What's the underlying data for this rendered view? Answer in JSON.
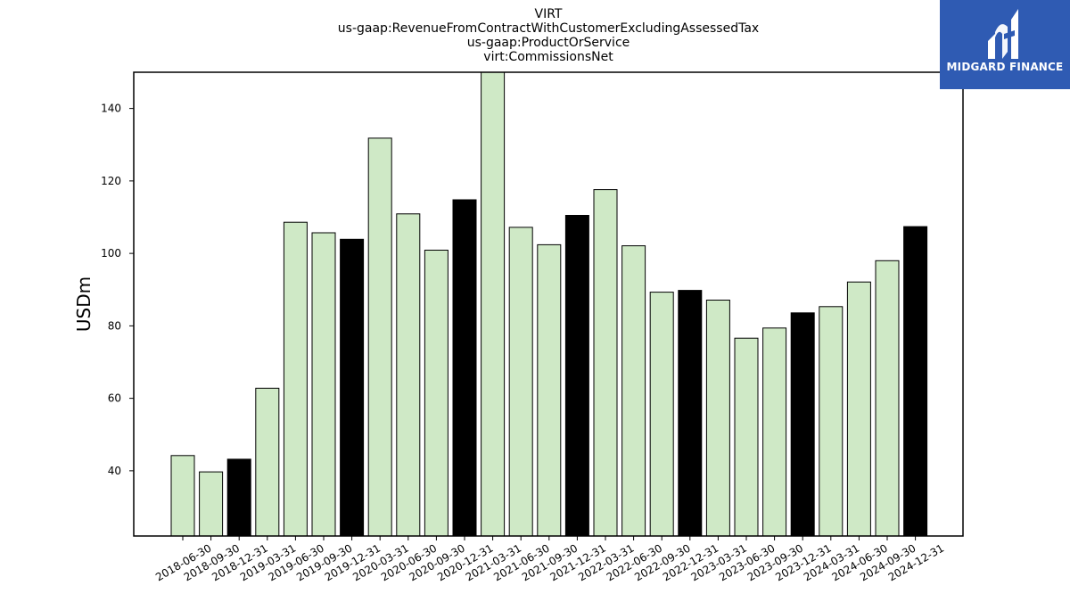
{
  "brand": {
    "name": "MIDGARD FINANCE",
    "background_color": "#2f5bb3",
    "icon": "midgard-logo-icon"
  },
  "chart_data": {
    "type": "bar",
    "title_lines": [
      "VIRT",
      "us-gaap:RevenueFromContractWithCustomerExcludingAssessedTax",
      "us-gaap:ProductOrService",
      "virt:CommissionsNet"
    ],
    "xlabel": "",
    "ylabel": "USDm",
    "ylim": [
      22,
      150
    ],
    "yticks": [
      40,
      60,
      80,
      100,
      120,
      140
    ],
    "grid": false,
    "colors": {
      "quarter": "#cfe9c6",
      "year_end": "#000000",
      "edge": "#000000"
    },
    "categories": [
      "2018-06-30",
      "2018-09-30",
      "2018-12-31",
      "2019-03-31",
      "2019-06-30",
      "2019-09-30",
      "2019-12-31",
      "2020-03-31",
      "2020-06-30",
      "2020-09-30",
      "2020-12-31",
      "2021-03-31",
      "2021-06-30",
      "2021-09-30",
      "2021-12-31",
      "2022-03-31",
      "2022-06-30",
      "2022-09-30",
      "2022-12-31",
      "2023-03-31",
      "2023-06-30",
      "2023-09-30",
      "2023-12-31",
      "2024-03-31",
      "2024-06-30",
      "2024-09-30",
      "2024-12-31"
    ],
    "values": [
      44.2,
      39.7,
      43.2,
      62.8,
      108.6,
      105.7,
      103.9,
      131.8,
      110.9,
      100.9,
      114.8,
      151.0,
      107.2,
      102.4,
      110.5,
      117.6,
      102.1,
      89.3,
      89.8,
      87.1,
      76.6,
      79.4,
      83.6,
      85.3,
      92.1,
      98.0,
      107.4
    ]
  }
}
